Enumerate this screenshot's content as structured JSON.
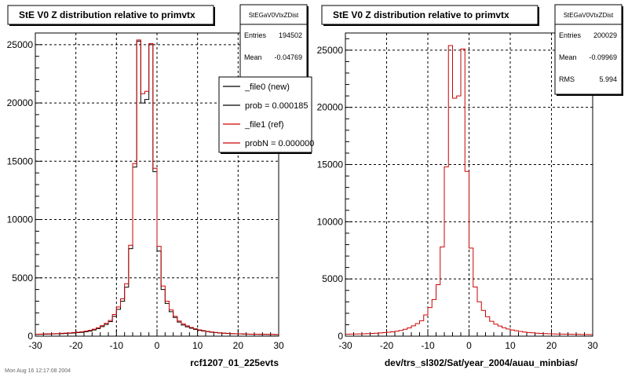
{
  "footer_note": "Mon Aug 16 12:17:08 2004",
  "chart_data": [
    {
      "type": "histogram",
      "title": "StE V0 Z distribution relative to primvtx",
      "xlabel": "rcf1207_01_225evts",
      "xlim": [
        -30,
        30
      ],
      "ylim": [
        0,
        26000
      ],
      "x_ticks": [
        "-30",
        "-20",
        "-10",
        "0",
        "10",
        "20",
        "30"
      ],
      "y_ticks": [
        "0",
        "5000",
        "10000",
        "15000",
        "20000",
        "25000"
      ],
      "y_tick_values": [
        0,
        5000,
        10000,
        15000,
        20000,
        25000
      ],
      "grid": true,
      "stats": {
        "name": "StEGaV0VtxZDist",
        "rows": [
          {
            "label": "Entries",
            "value": "194502"
          },
          {
            "label": "Mean",
            "value": "-0.04769"
          }
        ]
      },
      "legend": {
        "position": "top-right",
        "entries": [
          {
            "label": "_file0 (new)",
            "color": "#000000"
          },
          {
            "label": "prob = 0.000185",
            "color": "#000000"
          },
          {
            "label": "_file1 (ref)",
            "color": "#cc0000"
          },
          {
            "label": "probN = 0.000000",
            "color": "#cc0000"
          }
        ]
      },
      "bin_width": 1,
      "bin_start": -30,
      "series": [
        {
          "name": "_file0 (new)",
          "color": "#000000",
          "values": [
            150,
            160,
            170,
            180,
            190,
            200,
            210,
            230,
            250,
            270,
            300,
            330,
            380,
            440,
            530,
            650,
            820,
            1000,
            1250,
            1700,
            2300,
            3000,
            4200,
            7500,
            14500,
            25300,
            20000,
            20300,
            25000,
            14100,
            7300,
            4000,
            2800,
            2100,
            1600,
            1200,
            950,
            800,
            680,
            580,
            500,
            440,
            390,
            340,
            300,
            270,
            250,
            230,
            210,
            200,
            190,
            180,
            170,
            160,
            160,
            150,
            150,
            140,
            140,
            130
          ]
        },
        {
          "name": "_file1 (ref)",
          "color": "#cc0000",
          "values": [
            170,
            180,
            190,
            200,
            210,
            220,
            240,
            260,
            280,
            310,
            340,
            380,
            430,
            500,
            600,
            720,
            900,
            1100,
            1350,
            1850,
            2500,
            3200,
            4500,
            7800,
            14800,
            25400,
            20800,
            21000,
            25100,
            14400,
            7700,
            4300,
            3000,
            2250,
            1700,
            1300,
            1050,
            880,
            740,
            630,
            540,
            470,
            410,
            360,
            320,
            290,
            260,
            240,
            220,
            210,
            200,
            190,
            180,
            170,
            170,
            160,
            160,
            150,
            150,
            140
          ]
        }
      ]
    },
    {
      "type": "histogram",
      "title": "StE V0 Z distribution relative to primvtx",
      "xlabel": "dev/trs_sl302/Sat/year_2004/auau_minbias/",
      "xlim": [
        -30,
        30
      ],
      "ylim": [
        0,
        26500
      ],
      "x_ticks": [
        "-30",
        "-20",
        "-10",
        "0",
        "10",
        "20",
        "30"
      ],
      "y_ticks": [
        "0",
        "5000",
        "10000",
        "15000",
        "20000",
        "25000"
      ],
      "y_tick_values": [
        0,
        5000,
        10000,
        15000,
        20000,
        25000
      ],
      "grid": true,
      "stats": {
        "name": "StEGaV0VtxZDist",
        "rows": [
          {
            "label": "Entries",
            "value": "200029"
          },
          {
            "label": "Mean",
            "value": "-0.09969"
          },
          {
            "label": "RMS",
            "value": "5.994"
          }
        ]
      },
      "bin_width": 1,
      "bin_start": -30,
      "series": [
        {
          "name": "",
          "color": "#cc0000",
          "values": [
            170,
            180,
            190,
            200,
            210,
            220,
            240,
            260,
            280,
            310,
            340,
            380,
            430,
            500,
            600,
            720,
            900,
            1100,
            1350,
            1850,
            2500,
            3200,
            4500,
            7800,
            14800,
            25400,
            20800,
            21000,
            25100,
            14400,
            7700,
            4300,
            3000,
            2250,
            1700,
            1300,
            1050,
            880,
            740,
            630,
            540,
            470,
            410,
            360,
            320,
            290,
            260,
            240,
            220,
            210,
            200,
            190,
            180,
            170,
            170,
            160,
            160,
            150,
            150,
            140
          ]
        }
      ]
    }
  ]
}
